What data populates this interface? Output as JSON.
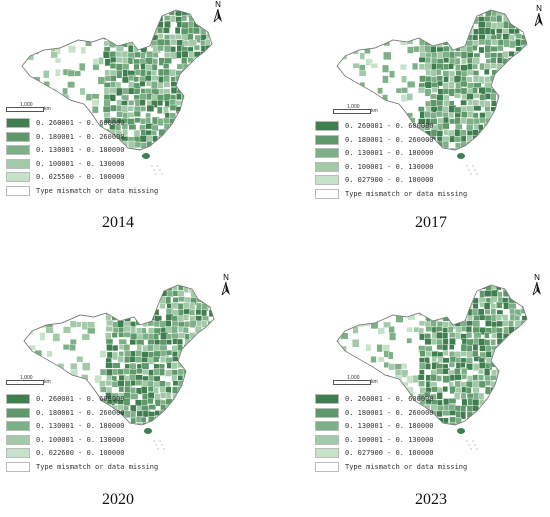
{
  "scale_label": "1,000",
  "scale_unit": "km",
  "north_label": "N",
  "colors": {
    "c1": "#3f7e4e",
    "c2": "#5e9969",
    "c3": "#7eb087",
    "c4": "#a2c9a8",
    "c5": "#c6e2c9",
    "missing": "#ffffff"
  },
  "panels": [
    {
      "year": "2014",
      "legend": [
        "0. 260001 - 0. 600000",
        "0. 180001 - 0. 260000",
        "0. 130001 - 0. 180000",
        "0. 100001 - 0. 130000",
        "0. 025500 - 0. 100000",
        "Type mismatch or data missing"
      ]
    },
    {
      "year": "2017",
      "legend": [
        "0. 260001 - 0. 600000",
        "0. 180001 - 0. 260000",
        "0. 130001 - 0. 180000",
        "0. 100001 - 0. 130000",
        "0. 027900 - 0. 100000",
        "Type mismatch or data missing"
      ]
    },
    {
      "year": "2020",
      "legend": [
        "0. 260001 - 0. 600000",
        "0. 180001 - 0. 260000",
        "0. 130001 - 0. 180000",
        "0. 100001 - 0. 130000",
        "0. 022600 - 0. 100000",
        "Type mismatch or data missing"
      ]
    },
    {
      "year": "2023",
      "legend": [
        "0. 260001 - 0. 600000",
        "0. 180001 - 0. 260000",
        "0. 130001 - 0. 180000",
        "0. 100001 - 0. 130000",
        "0. 027900 - 0. 100000",
        "Type mismatch or data missing"
      ]
    }
  ]
}
